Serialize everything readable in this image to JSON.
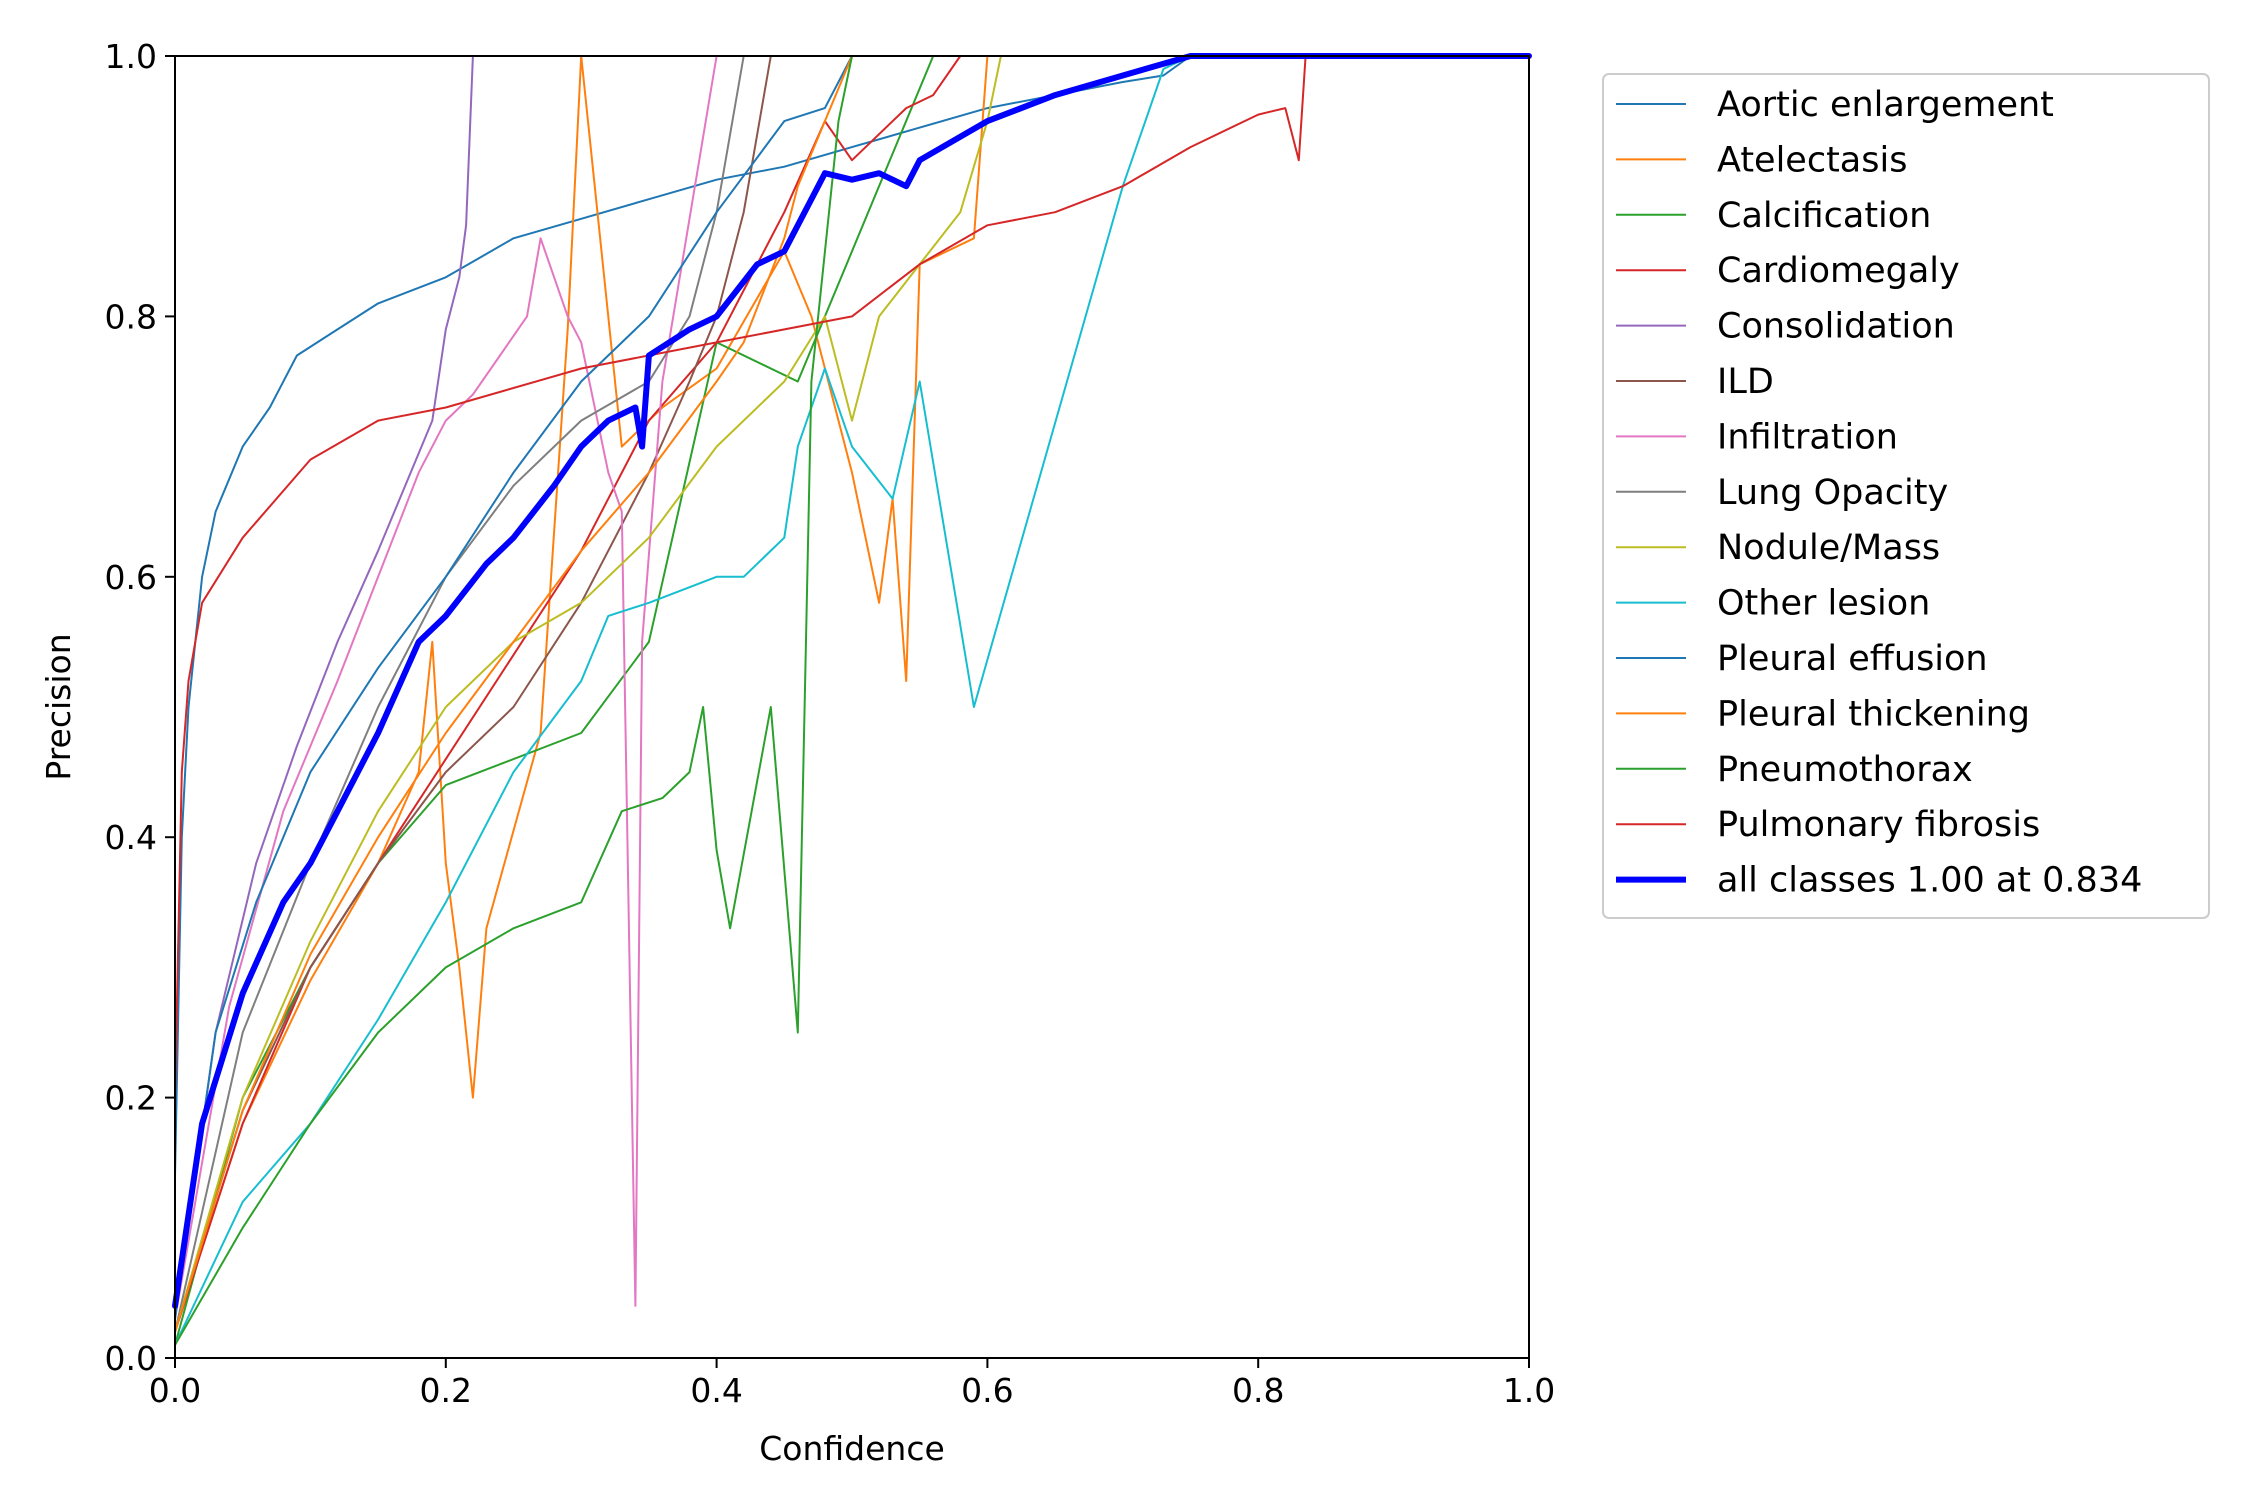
{
  "chart_data": {
    "type": "line",
    "title": "",
    "xlabel": "Confidence",
    "ylabel": "Precision",
    "xlim": [
      0,
      1
    ],
    "ylim": [
      0,
      1
    ],
    "x_ticks": [
      "0.0",
      "0.2",
      "0.4",
      "0.6",
      "0.8",
      "1.0"
    ],
    "y_ticks": [
      "0.0",
      "0.2",
      "0.4",
      "0.6",
      "0.8",
      "1.0"
    ],
    "grid": false,
    "legend_position": "outside-top-right",
    "series": [
      {
        "name": "Aortic enlargement",
        "color": "#1f77b4",
        "width": 2,
        "points": [
          [
            0,
            0.14
          ],
          [
            0.005,
            0.4
          ],
          [
            0.01,
            0.5
          ],
          [
            0.02,
            0.6
          ],
          [
            0.03,
            0.65
          ],
          [
            0.05,
            0.7
          ],
          [
            0.07,
            0.73
          ],
          [
            0.09,
            0.77
          ],
          [
            0.12,
            0.79
          ],
          [
            0.15,
            0.81
          ],
          [
            0.2,
            0.83
          ],
          [
            0.25,
            0.86
          ],
          [
            0.3,
            0.875
          ],
          [
            0.35,
            0.89
          ],
          [
            0.4,
            0.905
          ],
          [
            0.45,
            0.915
          ],
          [
            0.5,
            0.93
          ],
          [
            0.55,
            0.945
          ],
          [
            0.6,
            0.96
          ],
          [
            0.65,
            0.97
          ],
          [
            0.7,
            0.98
          ],
          [
            0.73,
            0.985
          ],
          [
            0.75,
            1
          ],
          [
            1,
            1
          ]
        ]
      },
      {
        "name": "Atelectasis",
        "color": "#ff7f0e",
        "width": 2,
        "points": [
          [
            0,
            0.02
          ],
          [
            0.05,
            0.18
          ],
          [
            0.1,
            0.29
          ],
          [
            0.15,
            0.38
          ],
          [
            0.18,
            0.45
          ],
          [
            0.19,
            0.55
          ],
          [
            0.2,
            0.38
          ],
          [
            0.21,
            0.3
          ],
          [
            0.22,
            0.2
          ],
          [
            0.23,
            0.33
          ],
          [
            0.27,
            0.48
          ],
          [
            0.29,
            0.79
          ],
          [
            0.3,
            1
          ],
          [
            0.33,
            0.7
          ],
          [
            0.36,
            0.73
          ],
          [
            0.4,
            0.76
          ],
          [
            0.45,
            0.85
          ],
          [
            0.47,
            0.8
          ],
          [
            0.5,
            0.68
          ],
          [
            0.52,
            0.58
          ],
          [
            0.53,
            0.66
          ],
          [
            0.54,
            0.52
          ],
          [
            0.55,
            0.84
          ],
          [
            0.59,
            0.86
          ],
          [
            0.6,
            1
          ],
          [
            1,
            1
          ]
        ]
      },
      {
        "name": "Calcification",
        "color": "#2ca02c",
        "width": 2,
        "points": [
          [
            0,
            0.01
          ],
          [
            0.05,
            0.2
          ],
          [
            0.1,
            0.3
          ],
          [
            0.15,
            0.38
          ],
          [
            0.2,
            0.44
          ],
          [
            0.3,
            0.48
          ],
          [
            0.35,
            0.55
          ],
          [
            0.4,
            0.78
          ],
          [
            0.46,
            0.75
          ],
          [
            0.5,
            0.85
          ],
          [
            0.56,
            1
          ],
          [
            1,
            1
          ]
        ]
      },
      {
        "name": "Cardiomegaly",
        "color": "#d62728",
        "width": 2,
        "points": [
          [
            0,
            0.02
          ],
          [
            0.05,
            0.18
          ],
          [
            0.1,
            0.3
          ],
          [
            0.15,
            0.38
          ],
          [
            0.2,
            0.46
          ],
          [
            0.25,
            0.54
          ],
          [
            0.3,
            0.62
          ],
          [
            0.35,
            0.72
          ],
          [
            0.4,
            0.78
          ],
          [
            0.45,
            0.88
          ],
          [
            0.48,
            0.95
          ],
          [
            0.5,
            0.92
          ],
          [
            0.54,
            0.96
          ],
          [
            0.56,
            0.97
          ],
          [
            0.58,
            1
          ],
          [
            1,
            1
          ]
        ]
      },
      {
        "name": "Consolidation",
        "color": "#9467bd",
        "width": 2,
        "points": [
          [
            0,
            0.03
          ],
          [
            0.03,
            0.25
          ],
          [
            0.06,
            0.38
          ],
          [
            0.09,
            0.47
          ],
          [
            0.12,
            0.55
          ],
          [
            0.15,
            0.62
          ],
          [
            0.17,
            0.67
          ],
          [
            0.19,
            0.72
          ],
          [
            0.2,
            0.79
          ],
          [
            0.21,
            0.83
          ],
          [
            0.215,
            0.87
          ],
          [
            0.22,
            1
          ],
          [
            1,
            1
          ]
        ]
      },
      {
        "name": "ILD",
        "color": "#8c564b",
        "width": 2,
        "points": [
          [
            0,
            0.02
          ],
          [
            0.05,
            0.19
          ],
          [
            0.1,
            0.3
          ],
          [
            0.15,
            0.38
          ],
          [
            0.2,
            0.45
          ],
          [
            0.25,
            0.5
          ],
          [
            0.3,
            0.58
          ],
          [
            0.35,
            0.68
          ],
          [
            0.38,
            0.75
          ],
          [
            0.4,
            0.8
          ],
          [
            0.42,
            0.88
          ],
          [
            0.44,
            1
          ],
          [
            1,
            1
          ]
        ]
      },
      {
        "name": "Infiltration",
        "color": "#e377c2",
        "width": 2,
        "points": [
          [
            0,
            0.03
          ],
          [
            0.04,
            0.27
          ],
          [
            0.08,
            0.42
          ],
          [
            0.12,
            0.52
          ],
          [
            0.15,
            0.6
          ],
          [
            0.18,
            0.68
          ],
          [
            0.2,
            0.72
          ],
          [
            0.22,
            0.74
          ],
          [
            0.24,
            0.77
          ],
          [
            0.26,
            0.8
          ],
          [
            0.27,
            0.86
          ],
          [
            0.29,
            0.8
          ],
          [
            0.3,
            0.78
          ],
          [
            0.32,
            0.68
          ],
          [
            0.33,
            0.65
          ],
          [
            0.34,
            0.04
          ],
          [
            0.345,
            0.55
          ],
          [
            0.36,
            0.75
          ],
          [
            0.4,
            1
          ],
          [
            1,
            1
          ]
        ]
      },
      {
        "name": "Lung Opacity",
        "color": "#7f7f7f",
        "width": 2,
        "points": [
          [
            0,
            0.02
          ],
          [
            0.05,
            0.25
          ],
          [
            0.1,
            0.38
          ],
          [
            0.15,
            0.5
          ],
          [
            0.2,
            0.6
          ],
          [
            0.25,
            0.67
          ],
          [
            0.3,
            0.72
          ],
          [
            0.35,
            0.75
          ],
          [
            0.38,
            0.8
          ],
          [
            0.4,
            0.88
          ],
          [
            0.42,
            1
          ],
          [
            1,
            1
          ]
        ]
      },
      {
        "name": "Nodule/Mass",
        "color": "#bcbd22",
        "width": 2,
        "points": [
          [
            0,
            0.02
          ],
          [
            0.05,
            0.2
          ],
          [
            0.1,
            0.32
          ],
          [
            0.15,
            0.42
          ],
          [
            0.2,
            0.5
          ],
          [
            0.25,
            0.55
          ],
          [
            0.3,
            0.58
          ],
          [
            0.35,
            0.63
          ],
          [
            0.4,
            0.7
          ],
          [
            0.45,
            0.75
          ],
          [
            0.48,
            0.8
          ],
          [
            0.5,
            0.72
          ],
          [
            0.52,
            0.8
          ],
          [
            0.55,
            0.84
          ],
          [
            0.58,
            0.88
          ],
          [
            0.6,
            0.95
          ],
          [
            0.61,
            1
          ],
          [
            1,
            1
          ]
        ]
      },
      {
        "name": "Other lesion",
        "color": "#17becf",
        "width": 2,
        "points": [
          [
            0,
            0.01
          ],
          [
            0.05,
            0.12
          ],
          [
            0.1,
            0.18
          ],
          [
            0.15,
            0.26
          ],
          [
            0.2,
            0.35
          ],
          [
            0.25,
            0.45
          ],
          [
            0.3,
            0.52
          ],
          [
            0.32,
            0.57
          ],
          [
            0.35,
            0.58
          ],
          [
            0.4,
            0.6
          ],
          [
            0.42,
            0.6
          ],
          [
            0.45,
            0.63
          ],
          [
            0.46,
            0.7
          ],
          [
            0.48,
            0.76
          ],
          [
            0.5,
            0.7
          ],
          [
            0.53,
            0.66
          ],
          [
            0.55,
            0.75
          ],
          [
            0.59,
            0.5
          ],
          [
            0.7,
            0.9
          ],
          [
            0.73,
            0.99
          ],
          [
            0.75,
            1
          ],
          [
            1,
            1
          ]
        ]
      },
      {
        "name": "Pleural effusion",
        "color": "#1f77b4",
        "width": 2,
        "points": [
          [
            0,
            0.03
          ],
          [
            0.03,
            0.25
          ],
          [
            0.06,
            0.35
          ],
          [
            0.1,
            0.45
          ],
          [
            0.15,
            0.53
          ],
          [
            0.2,
            0.6
          ],
          [
            0.25,
            0.68
          ],
          [
            0.3,
            0.75
          ],
          [
            0.35,
            0.8
          ],
          [
            0.4,
            0.88
          ],
          [
            0.45,
            0.95
          ],
          [
            0.48,
            0.96
          ],
          [
            0.5,
            1
          ],
          [
            1,
            1
          ]
        ]
      },
      {
        "name": "Pleural thickening",
        "color": "#ff7f0e",
        "width": 2,
        "points": [
          [
            0,
            0.02
          ],
          [
            0.05,
            0.19
          ],
          [
            0.1,
            0.31
          ],
          [
            0.15,
            0.4
          ],
          [
            0.2,
            0.48
          ],
          [
            0.25,
            0.55
          ],
          [
            0.3,
            0.62
          ],
          [
            0.35,
            0.68
          ],
          [
            0.4,
            0.75
          ],
          [
            0.42,
            0.78
          ],
          [
            0.45,
            0.86
          ],
          [
            0.46,
            0.9
          ],
          [
            0.5,
            1
          ],
          [
            1,
            1
          ]
        ]
      },
      {
        "name": "Pneumothorax",
        "color": "#2ca02c",
        "width": 2,
        "points": [
          [
            0,
            0.01
          ],
          [
            0.05,
            0.1
          ],
          [
            0.1,
            0.18
          ],
          [
            0.15,
            0.25
          ],
          [
            0.2,
            0.3
          ],
          [
            0.25,
            0.33
          ],
          [
            0.3,
            0.35
          ],
          [
            0.33,
            0.42
          ],
          [
            0.36,
            0.43
          ],
          [
            0.38,
            0.45
          ],
          [
            0.39,
            0.5
          ],
          [
            0.4,
            0.39
          ],
          [
            0.41,
            0.33
          ],
          [
            0.44,
            0.5
          ],
          [
            0.46,
            0.25
          ],
          [
            0.47,
            0.75
          ],
          [
            0.49,
            0.95
          ],
          [
            0.5,
            1
          ],
          [
            1,
            1
          ]
        ]
      },
      {
        "name": "Pulmonary fibrosis",
        "color": "#d62728",
        "width": 2,
        "points": [
          [
            0,
            0.2
          ],
          [
            0.005,
            0.45
          ],
          [
            0.01,
            0.52
          ],
          [
            0.02,
            0.58
          ],
          [
            0.05,
            0.63
          ],
          [
            0.1,
            0.69
          ],
          [
            0.15,
            0.72
          ],
          [
            0.2,
            0.73
          ],
          [
            0.3,
            0.76
          ],
          [
            0.4,
            0.78
          ],
          [
            0.5,
            0.8
          ],
          [
            0.55,
            0.84
          ],
          [
            0.6,
            0.87
          ],
          [
            0.65,
            0.88
          ],
          [
            0.7,
            0.9
          ],
          [
            0.75,
            0.93
          ],
          [
            0.8,
            0.955
          ],
          [
            0.82,
            0.96
          ],
          [
            0.83,
            0.92
          ],
          [
            0.835,
            1
          ],
          [
            1,
            1
          ]
        ]
      },
      {
        "name": "all classes 1.00 at 0.834",
        "color": "#0000ff",
        "width": 6,
        "points": [
          [
            0,
            0.04
          ],
          [
            0.02,
            0.18
          ],
          [
            0.05,
            0.28
          ],
          [
            0.08,
            0.35
          ],
          [
            0.1,
            0.38
          ],
          [
            0.12,
            0.42
          ],
          [
            0.15,
            0.48
          ],
          [
            0.18,
            0.55
          ],
          [
            0.2,
            0.57
          ],
          [
            0.23,
            0.61
          ],
          [
            0.25,
            0.63
          ],
          [
            0.28,
            0.67
          ],
          [
            0.3,
            0.7
          ],
          [
            0.32,
            0.72
          ],
          [
            0.34,
            0.73
          ],
          [
            0.345,
            0.7
          ],
          [
            0.35,
            0.77
          ],
          [
            0.38,
            0.79
          ],
          [
            0.4,
            0.8
          ],
          [
            0.43,
            0.84
          ],
          [
            0.45,
            0.85
          ],
          [
            0.48,
            0.91
          ],
          [
            0.5,
            0.905
          ],
          [
            0.52,
            0.91
          ],
          [
            0.54,
            0.9
          ],
          [
            0.55,
            0.92
          ],
          [
            0.6,
            0.95
          ],
          [
            0.65,
            0.97
          ],
          [
            0.7,
            0.985
          ],
          [
            0.75,
            1
          ],
          [
            0.83,
            1
          ],
          [
            0.834,
            1
          ],
          [
            1,
            1
          ]
        ]
      }
    ]
  }
}
